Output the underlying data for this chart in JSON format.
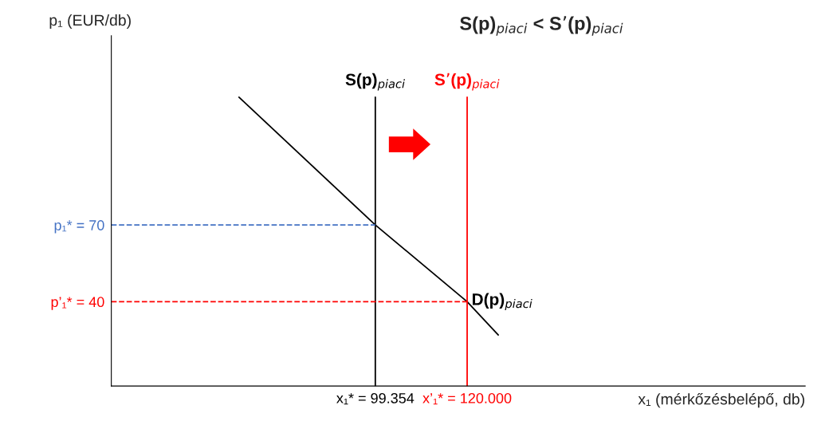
{
  "chart_data": {
    "type": "line",
    "title": "S(p)$_{piaci}$ < S’(p)$_{piaci}$",
    "xlabel": "x₁ (mérkőzésbelépő, db)",
    "ylabel": "p₁ (EUR/db)",
    "xlim": [
      40000,
      196000
    ],
    "ylim": [
      7,
      144
    ],
    "xticks": [
      {
        "value": 99354,
        "label": "x₁* = 99.354"
      },
      {
        "value": 120000,
        "label": "x’₁* = 120.000"
      }
    ],
    "yticks": [
      {
        "value": 40,
        "label": "p’₁* = 40"
      },
      {
        "value": 70,
        "label": "p₁* = 70"
      }
    ],
    "series": [
      {
        "name": "D(p)$_{piaci}$",
        "color": "#000000",
        "x": [
          68700,
          99354,
          120000,
          127000
        ],
        "values": [
          120,
          70,
          40,
          27
        ]
      },
      {
        "name": "S(p)$_{piaci}$",
        "color": "#000000",
        "x": [
          99354,
          99354
        ],
        "values": [
          7,
          120
        ]
      },
      {
        "name": "S’(p)$_{piaci}$",
        "color": "#ff0000",
        "x": [
          120000,
          120000
        ],
        "values": [
          7,
          120
        ]
      },
      {
        "color": "#4472c4",
        "line_style": "dashed",
        "x": [
          40000,
          99354
        ],
        "values": [
          70,
          70
        ]
      },
      {
        "color": "#ff0000",
        "line_style": "dashed",
        "x": [
          40000,
          120000
        ],
        "values": [
          40,
          40
        ]
      }
    ],
    "legend": false,
    "grid": false,
    "marker": "none",
    "line_style": "solid"
  }
}
